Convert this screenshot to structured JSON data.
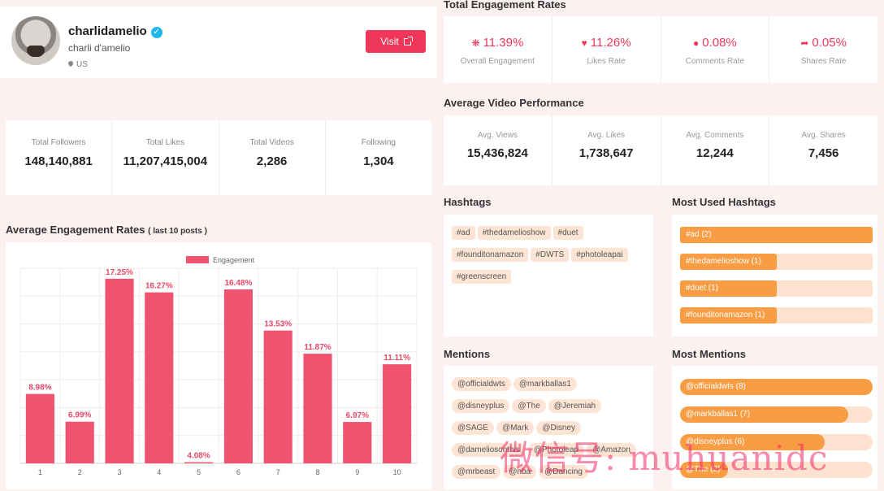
{
  "profile": {
    "username": "charlidamelio",
    "display_name": "charli d'amelio",
    "country": "US",
    "visit_label": "Visit",
    "stats": [
      {
        "label": "Total Followers",
        "value": "148,140,881"
      },
      {
        "label": "Total Likes",
        "value": "11,207,415,004"
      },
      {
        "label": "Total Videos",
        "value": "2,286"
      },
      {
        "label": "Following",
        "value": "1,304"
      }
    ]
  },
  "engagement": {
    "title": "Total Engagement Rates",
    "rates": [
      {
        "icon": "sparkle-icon",
        "glyph": "❋",
        "value": "11.39%",
        "label": "Overall Engagement"
      },
      {
        "icon": "heart-icon",
        "glyph": "♥",
        "value": "11.26%",
        "label": "Likes Rate"
      },
      {
        "icon": "comment-icon",
        "glyph": "●",
        "value": "0.08%",
        "label": "Comments Rate"
      },
      {
        "icon": "share-icon",
        "glyph": "➦",
        "value": "0.05%",
        "label": "Shares Rate"
      }
    ]
  },
  "video_performance": {
    "title": "Average Video Performance",
    "items": [
      {
        "label": "Avg. Views",
        "value": "15,436,824"
      },
      {
        "label": "Avg. Likes",
        "value": "1,738,647"
      },
      {
        "label": "Avg. Comments",
        "value": "12,244"
      },
      {
        "label": "Avg. Shares",
        "value": "7,456"
      }
    ]
  },
  "chart_section": {
    "title": "Average Engagement Rates",
    "subtitle": "( last 10 posts )"
  },
  "chart_data": {
    "type": "bar",
    "title": "",
    "legend": "Engagement",
    "legend_position": "top-center",
    "categories": [
      "1",
      "2",
      "3",
      "4",
      "5",
      "6",
      "7",
      "8",
      "9",
      "10"
    ],
    "values": [
      8.98,
      6.99,
      17.25,
      16.27,
      4.08,
      16.48,
      13.53,
      11.87,
      6.97,
      11.11
    ],
    "labels": [
      "8.98%",
      "6.99%",
      "17.25%",
      "16.27%",
      "4.08%",
      "16.48%",
      "13.53%",
      "11.87%",
      "6.97%",
      "11.11%"
    ],
    "ylim": [
      4.0,
      18.0
    ],
    "grid": true,
    "bar_color": "#f0536f"
  },
  "hashtags": {
    "title": "Hashtags",
    "items": [
      "#ad",
      "#thedamelioshow",
      "#duet",
      "#founditonamazon",
      "#DWTS",
      "#photoleapai",
      "#greenscreen"
    ]
  },
  "most_used_hashtags": {
    "title": "Most Used Hashtags",
    "items": [
      {
        "label": "#ad (2)",
        "count": 2
      },
      {
        "label": "#thedamelioshow (1)",
        "count": 1
      },
      {
        "label": "#duet (1)",
        "count": 1
      },
      {
        "label": "#founditonamazon (1)",
        "count": 1
      }
    ],
    "max": 2
  },
  "mentions": {
    "title": "Mentions",
    "items": [
      "@officialdwts",
      "@markballas1",
      "@disneyplus",
      "@The",
      "@Jeremiah",
      "@SAGE",
      "@Mark",
      "@Disney",
      "@dameliosonthis",
      "@Photoleap",
      "@Amazon",
      "@mrbeast",
      "@nba",
      "@Dancing"
    ]
  },
  "most_mentions": {
    "title": "Most Mentions",
    "items": [
      {
        "label": "@officialdwts (8)",
        "count": 8
      },
      {
        "label": "@markballas1 (7)",
        "count": 7
      },
      {
        "label": "@disneyplus (6)",
        "count": 6
      },
      {
        "label": "@The (2)",
        "count": 2
      }
    ],
    "max": 8
  },
  "watermark": "微信号: muhuanidc",
  "colors": {
    "accent": "#f0375a",
    "bar": "#f0536f",
    "orange": "#f99d44",
    "orange_light": "#fde2cf"
  }
}
